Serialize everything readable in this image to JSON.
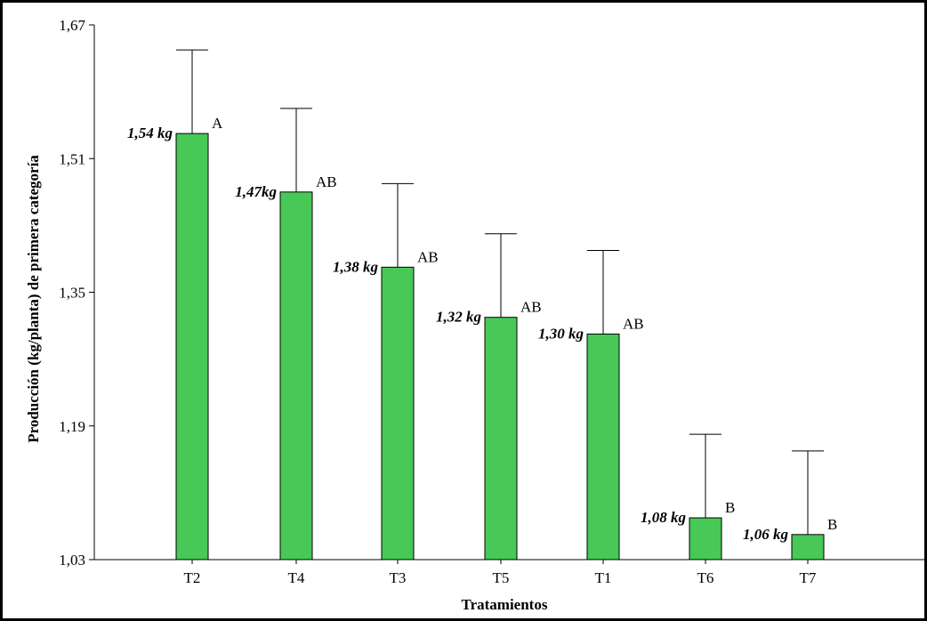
{
  "chart_data": {
    "type": "bar",
    "title": "",
    "xlabel": "Tratamientos",
    "ylabel": "Producción (kg/planta) de primera categoría",
    "ylim": [
      1.03,
      1.67
    ],
    "yticks": [
      "1,03",
      "1,19",
      "1,35",
      "1,51",
      "1,67"
    ],
    "ytick_values": [
      1.03,
      1.19,
      1.35,
      1.51,
      1.67
    ],
    "categories": [
      "T2",
      "T4",
      "T3",
      "T5",
      "T1",
      "T6",
      "T7"
    ],
    "values": [
      1.54,
      1.47,
      1.38,
      1.32,
      1.3,
      1.08,
      1.06
    ],
    "error_upper": [
      1.64,
      1.57,
      1.48,
      1.42,
      1.4,
      1.18,
      1.16
    ],
    "value_labels": [
      "1,54 kg",
      "1,47kg",
      "1,38 kg",
      "1,32 kg",
      "1,30 kg",
      "1,08 kg",
      "1,06 kg"
    ],
    "group_letters": [
      "A",
      "AB",
      "AB",
      "AB",
      "AB",
      "B",
      "B"
    ],
    "bar_color": "#47c857",
    "grid": false,
    "legend": "none"
  }
}
